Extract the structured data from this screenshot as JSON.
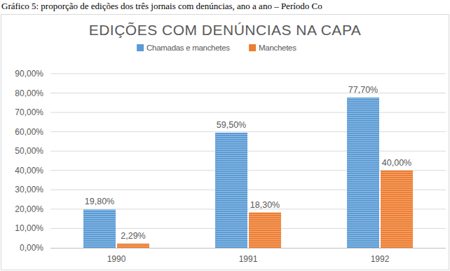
{
  "chart_data": {
    "type": "bar",
    "title": "EDIÇÕES COM  DENÚNCIAS NA CAPA",
    "annotations": [
      "Gráfico 5: proporção de edições dos três jornais com denúncias, ano a ano – Período Co"
    ],
    "categories": [
      "1990",
      "1991",
      "1992"
    ],
    "series": [
      {
        "name": "Chamadas e manchetes",
        "color": "#5b9bd5",
        "values": [
          19.8,
          59.5,
          77.7
        ],
        "value_labels": [
          "19,80%",
          "59,50%",
          "77,70%"
        ]
      },
      {
        "name": "Manchetes",
        "color": "#ed7d31",
        "values": [
          2.29,
          18.3,
          40.0
        ],
        "value_labels": [
          "2,29%",
          "18,30%",
          "40,00%"
        ]
      }
    ],
    "ylim": [
      0,
      90
    ],
    "yticks": [
      {
        "value": 0,
        "label": "0,00%"
      },
      {
        "value": 10,
        "label": "10,00%"
      },
      {
        "value": 20,
        "label": "20,00%"
      },
      {
        "value": 30,
        "label": "30,00%"
      },
      {
        "value": 40,
        "label": "40,00%"
      },
      {
        "value": 50,
        "label": "50,00%"
      },
      {
        "value": 60,
        "label": "60,00%"
      },
      {
        "value": 70,
        "label": "70,00%"
      },
      {
        "value": 80,
        "label": "80,00%"
      },
      {
        "value": 90,
        "label": "90,00%"
      }
    ],
    "grid": true,
    "legend": "top",
    "data_labels": true
  }
}
